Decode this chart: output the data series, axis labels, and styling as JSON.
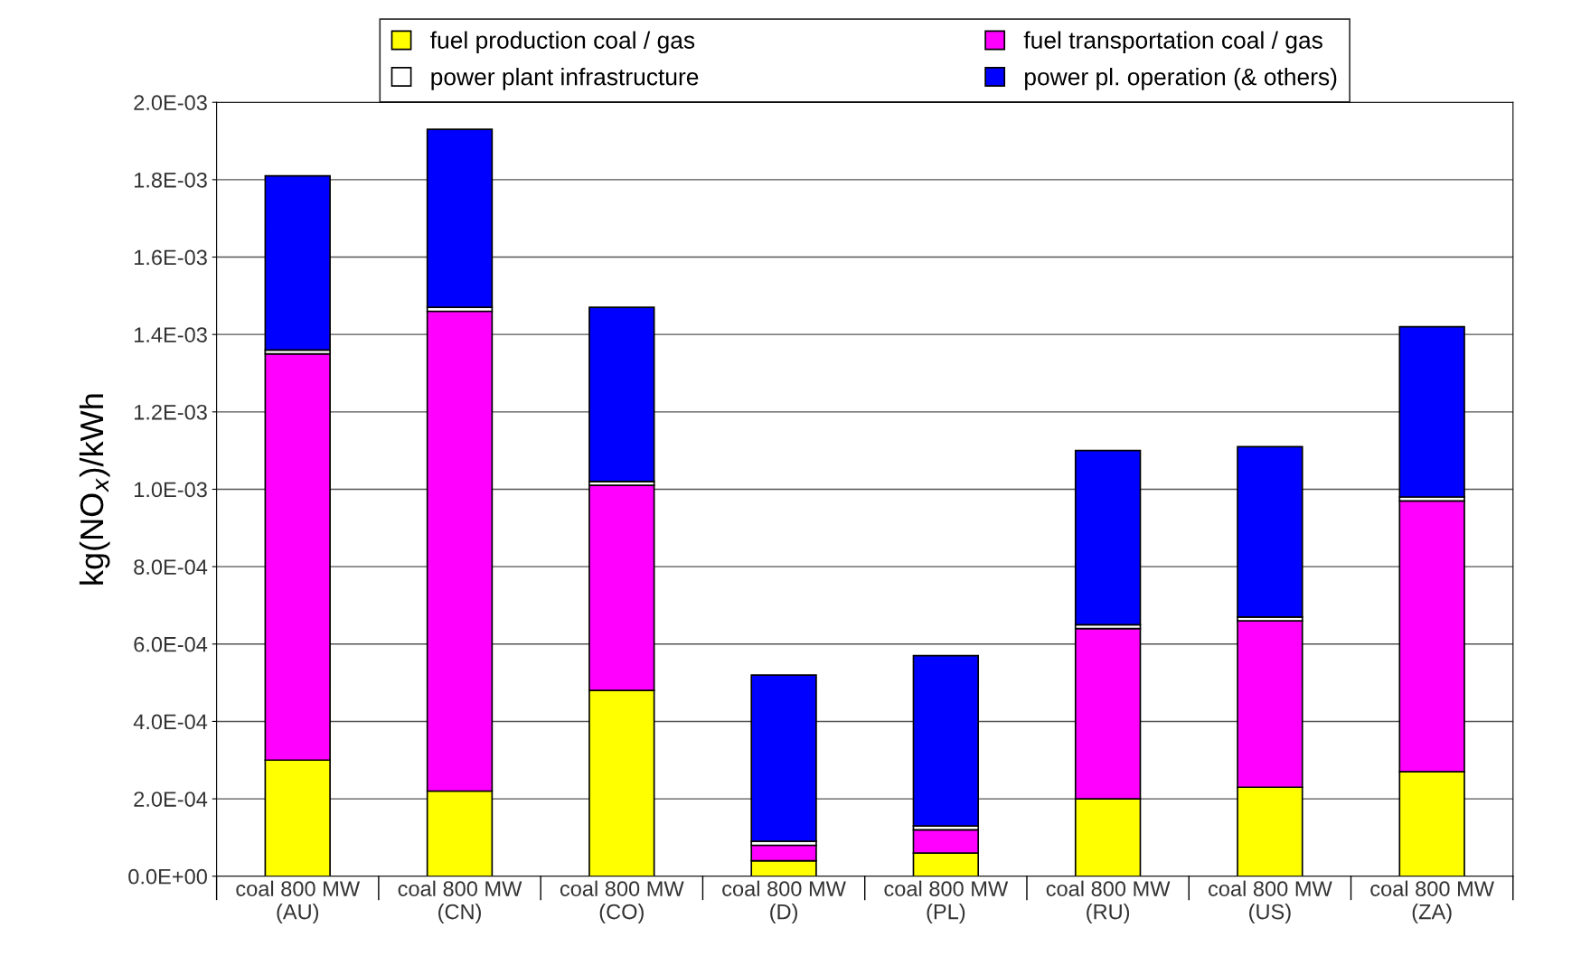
{
  "chart_data": {
    "type": "bar",
    "stacked": true,
    "ylabel": "kg(NO$_{x}$)/kWh",
    "categories": [
      "coal 800 MW\n(AU)",
      "coal 800 MW\n(CN)",
      "coal 800 MW\n(CO)",
      "coal 800 MW\n(D)",
      "coal 800 MW\n(PL)",
      "coal 800 MW\n(RU)",
      "coal 800 MW\n(US)",
      "coal 800 MW\n(ZA)"
    ],
    "series": [
      {
        "name": "fuel production coal / gas",
        "color": "#ffff00",
        "values": [
          0.0003,
          0.00022,
          0.00048,
          4e-05,
          6e-05,
          0.0002,
          0.00023,
          0.00027
        ]
      },
      {
        "name": "fuel transportation coal / gas",
        "color": "#ff00ff",
        "values": [
          0.00105,
          0.00124,
          0.00053,
          4e-05,
          6e-05,
          0.00044,
          0.00043,
          0.0007
        ]
      },
      {
        "name": "power plant infrastructure",
        "color": "#ffffff",
        "values": [
          1e-05,
          1e-05,
          1e-05,
          1e-05,
          1e-05,
          1e-05,
          1e-05,
          1e-05
        ]
      },
      {
        "name": "power pl. operation (& others)",
        "color": "#0000ff",
        "values": [
          0.00045,
          0.00046,
          0.00045,
          0.00043,
          0.00044,
          0.00045,
          0.00044,
          0.00044
        ]
      }
    ],
    "ylim": [
      0,
      0.002
    ],
    "yticks": [
      {
        "value": 0,
        "label": "0.0E+00"
      },
      {
        "value": 0.0002,
        "label": "2.0E-04"
      },
      {
        "value": 0.0004,
        "label": "4.0E-04"
      },
      {
        "value": 0.0006,
        "label": "6.0E-04"
      },
      {
        "value": 0.0008,
        "label": "8.0E-04"
      },
      {
        "value": 0.001,
        "label": "1.0E-03"
      },
      {
        "value": 0.0012,
        "label": "1.2E-03"
      },
      {
        "value": 0.0014,
        "label": "1.4E-03"
      },
      {
        "value": 0.0016,
        "label": "1.6E-03"
      },
      {
        "value": 0.0018,
        "label": "1.8E-03"
      },
      {
        "value": 0.002,
        "label": "2.0E-03"
      }
    ],
    "grid": "y",
    "legend": "top"
  }
}
